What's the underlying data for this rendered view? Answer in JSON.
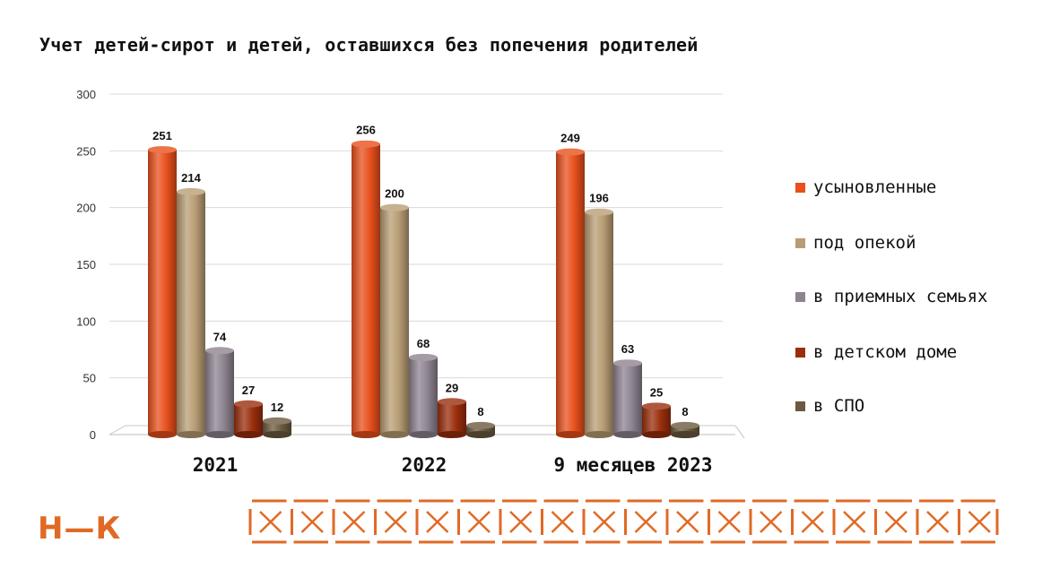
{
  "title": "Учет детей-сирот и детей, оставшихся без попечения родителей",
  "logo_text": "Н—К",
  "chart_data": {
    "type": "bar",
    "categories": [
      "2021",
      "2022",
      "9 месяцев 2023"
    ],
    "series": [
      {
        "name": "усыновленные",
        "values": [
          251,
          256,
          249
        ],
        "color": "#e8501c"
      },
      {
        "name": "под опекой",
        "values": [
          214,
          200,
          196
        ],
        "color": "#b89d74"
      },
      {
        "name": "в приемных семьях",
        "values": [
          74,
          68,
          63
        ],
        "color": "#8e8390"
      },
      {
        "name": "в детском доме",
        "values": [
          27,
          29,
          25
        ],
        "color": "#9a2e0c"
      },
      {
        "name": "в СПО",
        "values": [
          12,
          8,
          8
        ],
        "color": "#6b5a40"
      }
    ],
    "ylim": [
      0,
      300
    ],
    "yticks": [
      0,
      50,
      100,
      150,
      200,
      250,
      300
    ],
    "grid": true,
    "legend": "right",
    "data_labels": true
  }
}
